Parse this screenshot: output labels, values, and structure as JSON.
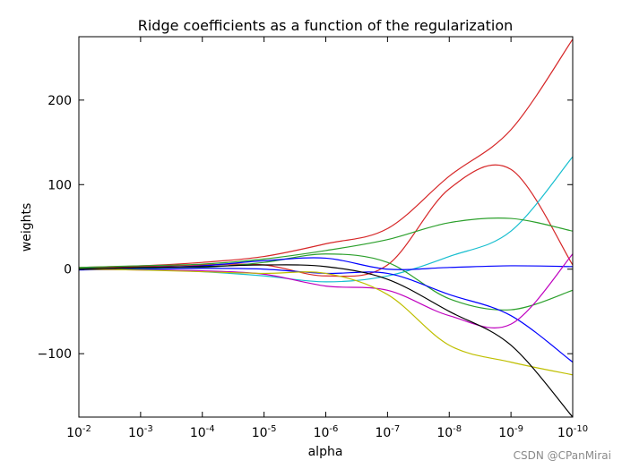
{
  "chart_data": {
    "type": "line",
    "title": "Ridge coefficients as a function of the regularization",
    "xlabel": "alpha",
    "ylabel": "weights",
    "x_scale": "log",
    "x_reversed": true,
    "xlim": [
      0.01,
      1e-10
    ],
    "ylim": [
      -175,
      275
    ],
    "x_ticks": [
      {
        "value": 0.01,
        "base": "10",
        "exp": "-2"
      },
      {
        "value": 0.001,
        "base": "10",
        "exp": "-3"
      },
      {
        "value": 0.0001,
        "base": "10",
        "exp": "-4"
      },
      {
        "value": 1e-05,
        "base": "10",
        "exp": "-5"
      },
      {
        "value": 1e-06,
        "base": "10",
        "exp": "-6"
      },
      {
        "value": 1e-07,
        "base": "10",
        "exp": "-7"
      },
      {
        "value": 1e-08,
        "base": "10",
        "exp": "-8"
      },
      {
        "value": 1e-09,
        "base": "10",
        "exp": "-9"
      },
      {
        "value": 1e-10,
        "base": "10",
        "exp": "-10"
      }
    ],
    "y_ticks": [
      {
        "value": 200,
        "label": "200"
      },
      {
        "value": 100,
        "label": "100"
      },
      {
        "value": 0,
        "label": "0"
      },
      {
        "value": -100,
        "label": "−100"
      }
    ],
    "x": [
      0.01,
      0.001,
      0.0001,
      1e-05,
      1e-06,
      1e-07,
      1e-08,
      1e-09,
      1e-10
    ],
    "series": [
      {
        "color": "#d62728",
        "values": [
          2,
          4,
          8,
          15,
          30,
          48,
          110,
          165,
          272
        ]
      },
      {
        "color": "#d62728",
        "values": [
          1,
          3,
          5,
          5,
          -8,
          5,
          95,
          118,
          5
        ]
      },
      {
        "color": "#17becf",
        "values": [
          1,
          0,
          -3,
          -8,
          -15,
          -8,
          15,
          45,
          133
        ]
      },
      {
        "color": "#2ca02c",
        "values": [
          2,
          4,
          6,
          12,
          22,
          35,
          55,
          60,
          45
        ]
      },
      {
        "color": "#2ca02c",
        "values": [
          1,
          1,
          2,
          8,
          18,
          8,
          -35,
          -48,
          -25
        ]
      },
      {
        "color": "#0000ff",
        "values": [
          0,
          2,
          4,
          10,
          13,
          0,
          2,
          4,
          3
        ]
      },
      {
        "color": "#0000ff",
        "values": [
          -1,
          0,
          1,
          0,
          -5,
          -5,
          -30,
          -55,
          -110
        ]
      },
      {
        "color": "#bf00bf",
        "values": [
          0,
          -1,
          -2,
          -6,
          -20,
          -25,
          -55,
          -65,
          18
        ]
      },
      {
        "color": "#bfbf00",
        "values": [
          0,
          -1,
          -3,
          -5,
          -5,
          -30,
          -90,
          -110,
          -125
        ]
      },
      {
        "color": "#000000",
        "values": [
          0,
          2,
          3,
          5,
          3,
          -12,
          -50,
          -90,
          -175
        ]
      }
    ],
    "grid": false,
    "legend": "none"
  },
  "watermark": "CSDN @CPanMirai"
}
